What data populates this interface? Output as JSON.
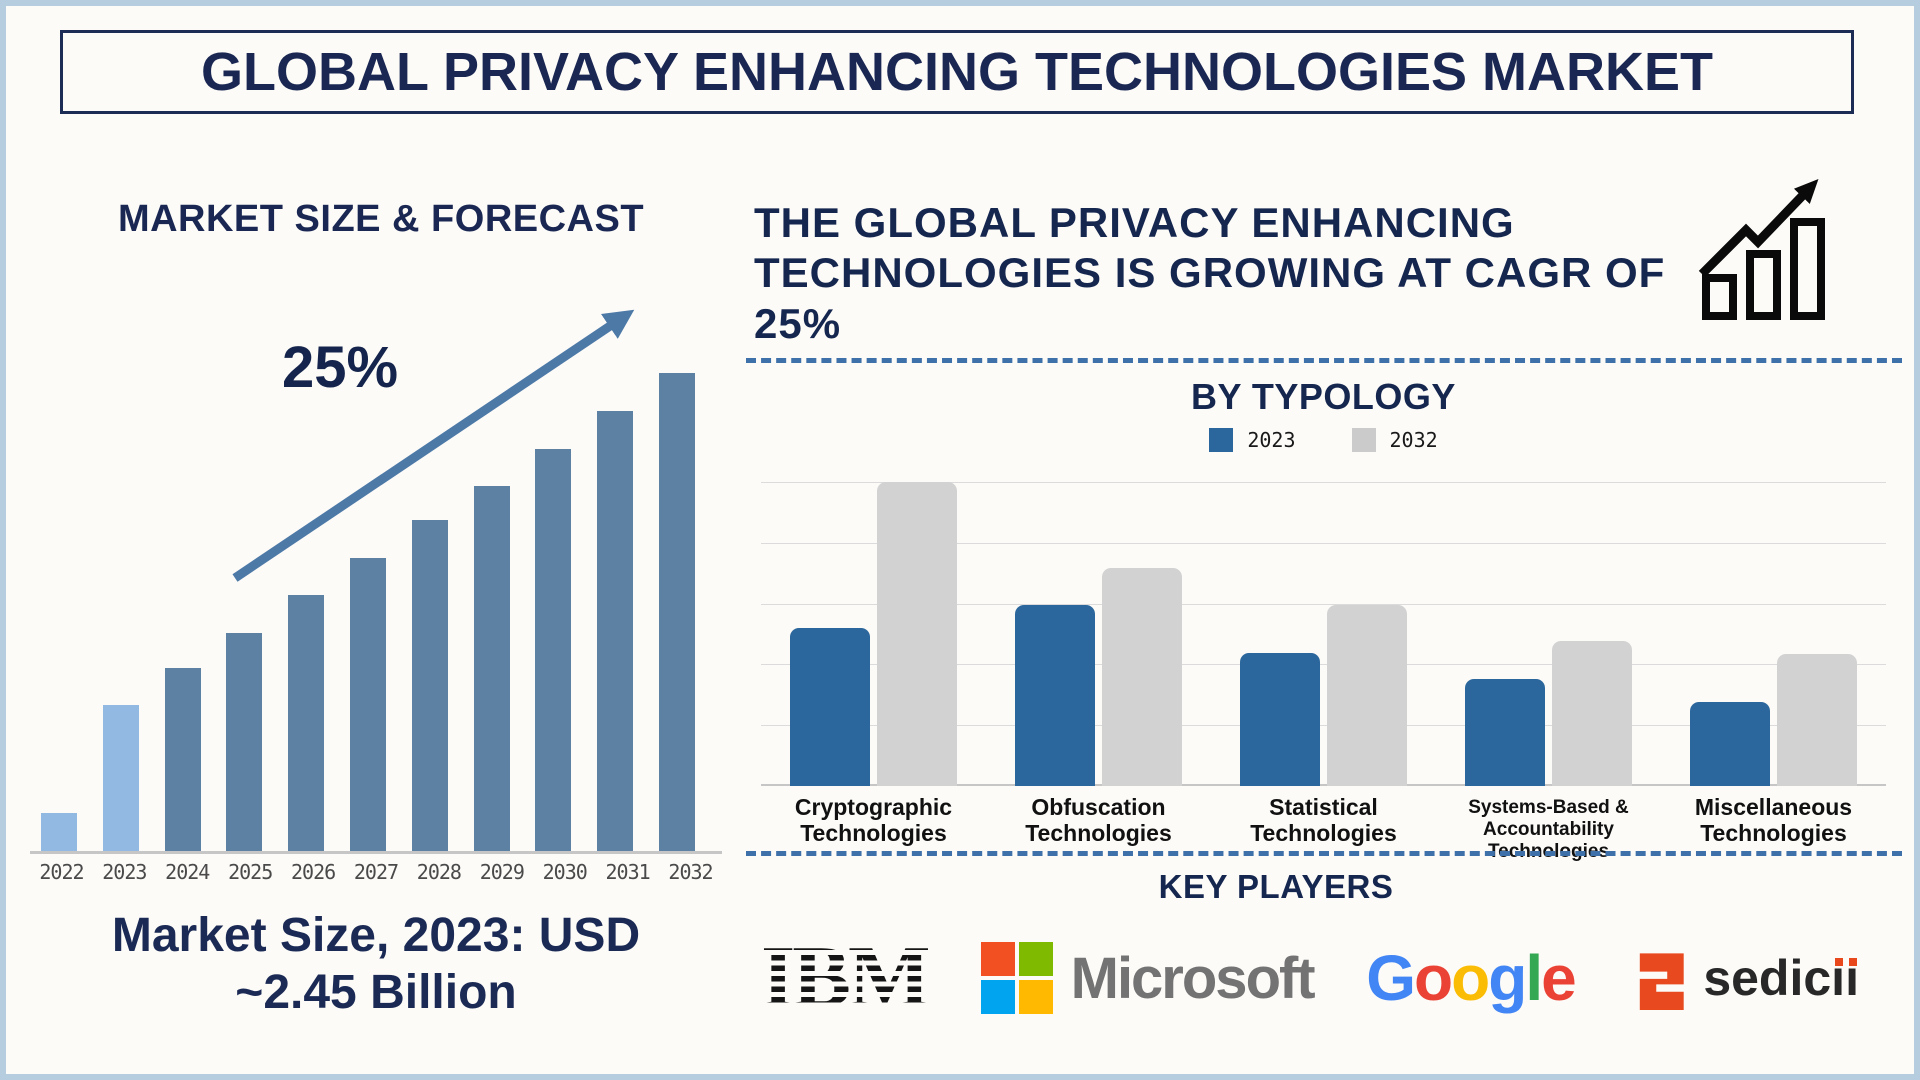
{
  "page": {
    "title": "GLOBAL PRIVACY ENHANCING TECHNOLOGIES MARKET"
  },
  "left_panel": {
    "heading": "MARKET SIZE & FORECAST",
    "growth_label": "25%",
    "caption_lines": [
      "Market Size, 2023: USD",
      "~2.45 Billion"
    ]
  },
  "right_panel": {
    "heading": "THE GLOBAL PRIVACY ENHANCING\nTECHNOLOGIES IS GROWING AT CAGR OF\n25%",
    "typology_heading": "BY TYPOLOGY",
    "legend": [
      {
        "label": "2023",
        "color": "#2b679c"
      },
      {
        "label": "2032",
        "color": "#cbcbcb"
      }
    ],
    "key_players_heading": "KEY PLAYERS",
    "logos": {
      "ibm": {
        "text": "IBM"
      },
      "microsoft": {
        "text": "Microsoft",
        "squares": [
          "#f25022",
          "#7fba00",
          "#00a4ef",
          "#ffb900"
        ]
      },
      "google": {
        "letters": [
          {
            "ch": "G",
            "color": "#4285F4"
          },
          {
            "ch": "o",
            "color": "#EA4335"
          },
          {
            "ch": "o",
            "color": "#FBBC05"
          },
          {
            "ch": "g",
            "color": "#4285F4"
          },
          {
            "ch": "l",
            "color": "#34A853"
          },
          {
            "ch": "e",
            "color": "#EA4335"
          }
        ]
      },
      "sedicii": {
        "head": "sedic",
        "tail_letters": [
          "ı",
          "ı"
        ],
        "mark_color": "#e8491f"
      }
    }
  },
  "chart_data": [
    {
      "type": "bar",
      "title": "MARKET SIZE & FORECAST",
      "categories": [
        "2022",
        "2023",
        "2024",
        "2025",
        "2026",
        "2027",
        "2028",
        "2029",
        "2030",
        "2031",
        "2032"
      ],
      "values_relative_pct": [
        8,
        30.5,
        38.3,
        45.6,
        53.6,
        61.3,
        69.2,
        76.4,
        84.1,
        92,
        100
      ],
      "no_numeric_axis": true,
      "known_point": {
        "year": "2023",
        "value": "USD ~2.45 Billion"
      },
      "annotation": "25%",
      "annotation_meaning": "CAGR trend arrow",
      "highlight_indices": [
        0,
        1
      ],
      "xlabel": "",
      "ylabel": "",
      "grid": false
    },
    {
      "type": "bar",
      "title": "BY TYPOLOGY",
      "categories": [
        "Cryptographic\nTechnologies",
        "Obfuscation\nTechnologies",
        "Statistical\nTechnologies",
        "Systems-Based &\nAccountability Technologies",
        "Miscellaneous\nTechnologies"
      ],
      "series": [
        {
          "name": "2023",
          "color": "#2b679c",
          "values_relative_pct": [
            52,
            59.7,
            43.8,
            35.3,
            27.5
          ]
        },
        {
          "name": "2032",
          "color": "#d2d2d2",
          "values_relative_pct": [
            100,
            71.7,
            59.5,
            47.6,
            43.5
          ]
        }
      ],
      "no_numeric_axis": true,
      "legend_position": "top",
      "grid": true
    }
  ],
  "colors": {
    "navy_text": "#1a2752",
    "bar_light_blue": "#92b9e2",
    "bar_steel_blue": "#5d81a3",
    "trend_arrow": "#4d79a7",
    "dashed_line": "#3e70a9",
    "typology_blue": "#2b679c",
    "typology_gray": "#d2d2d2",
    "gridline": "#dbdbdb",
    "axis_text": "#4a4a4a",
    "page_border": "#b6cddf",
    "icon_black": "#0a0a0a"
  }
}
